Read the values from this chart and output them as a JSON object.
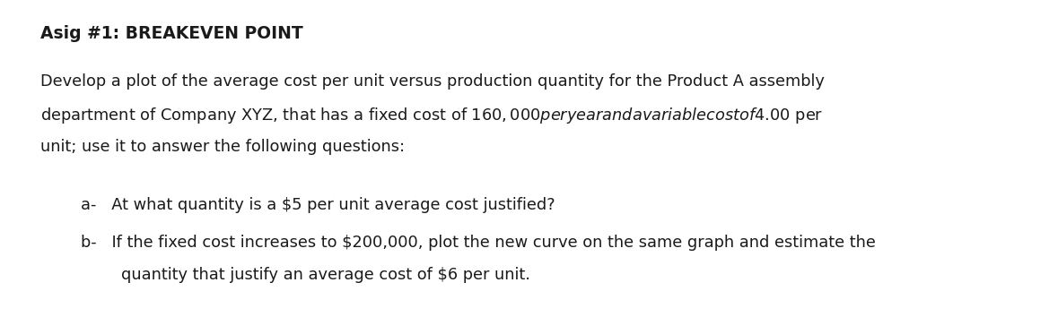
{
  "title": "Asig #1: BREAKEVEN POINT",
  "title_fontsize": 13.5,
  "title_fontweight": "bold",
  "body_line1": "Develop a plot of the average cost per unit versus production quantity for the Product A assembly",
  "body_line2": "department of Company XYZ, that has a fixed cost of $160,000 per year and a variable cost of $4.00 per",
  "body_line3": "unit; use it to answer the following questions:",
  "item_a": "a-   At what quantity is a $5 per unit average cost justified?",
  "item_b_line1": "b-   If the fixed cost increases to $200,000, plot the new curve on the same graph and estimate the",
  "item_b_line2": "        quantity that justify an average cost of $6 per unit.",
  "body_fontsize": 12.8,
  "item_fontsize": 12.8,
  "background_color": "#ffffff",
  "text_color": "#1a1a1a",
  "fig_width": 11.79,
  "fig_height": 3.54,
  "dpi": 100
}
